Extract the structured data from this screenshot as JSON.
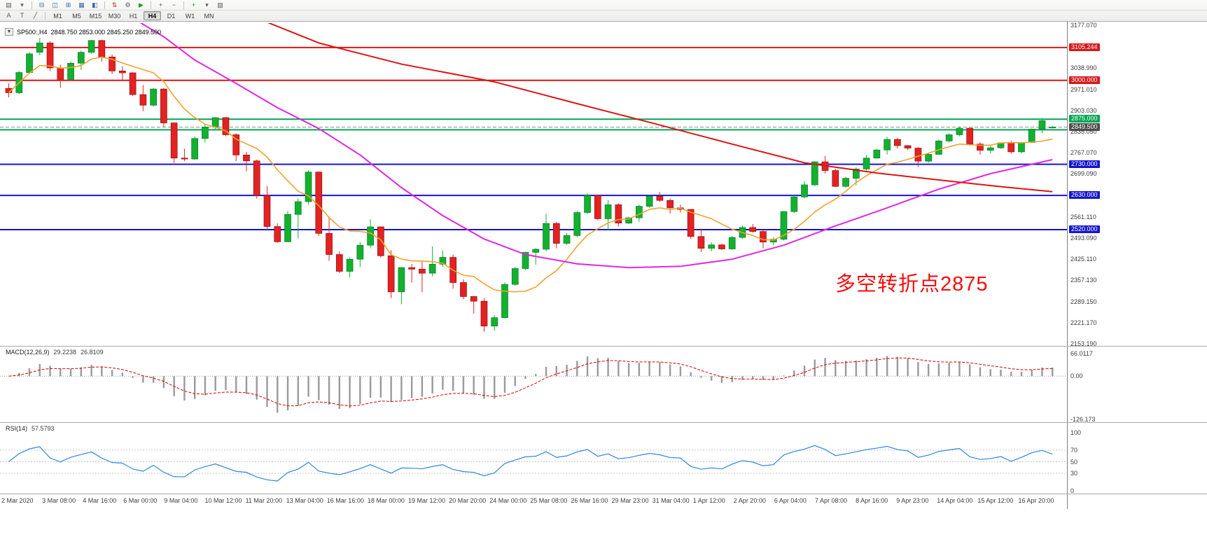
{
  "toolbar": {
    "row1": [
      {
        "name": "new-chart-icon",
        "glyph": "▤",
        "color": "#5a5a5a"
      },
      {
        "name": "profiles-dropdown-icon",
        "glyph": "▾",
        "color": "#5a5a5a"
      },
      {
        "name": "sep"
      },
      {
        "name": "market-watch-icon",
        "glyph": "⊟",
        "color": "#3465a4"
      },
      {
        "name": "data-window-icon",
        "glyph": "◫",
        "color": "#3465a4"
      },
      {
        "name": "navigator-icon",
        "glyph": "⊞",
        "color": "#3465a4"
      },
      {
        "name": "terminal-icon",
        "glyph": "▦",
        "color": "#3465a4"
      },
      {
        "name": "strategy-tester-icon",
        "glyph": "◧",
        "color": "#3465a4"
      },
      {
        "name": "sep"
      },
      {
        "name": "new-order-icon",
        "glyph": "⇅",
        "color": "#c02222"
      },
      {
        "name": "metaeditor-icon",
        "glyph": "⚙",
        "color": "#5a5a5a"
      },
      {
        "name": "autotrading-icon",
        "glyph": "▶",
        "color": "#2a9a2a"
      },
      {
        "name": "sep"
      },
      {
        "name": "zoom-in-icon",
        "glyph": "+",
        "color": "#5a5a5a"
      },
      {
        "name": "zoom-out-icon",
        "glyph": "−",
        "color": "#5a5a5a"
      },
      {
        "name": "sep"
      },
      {
        "name": "indicators-add-icon",
        "glyph": "+",
        "color": "#14a014"
      },
      {
        "name": "timeframes-dropdown-icon",
        "glyph": "▾",
        "color": "#5a5a5a"
      },
      {
        "name": "templates-icon",
        "glyph": "▧",
        "color": "#5a5a5a"
      }
    ],
    "row2_tools": [
      {
        "name": "text-label-tool-button",
        "label": "A"
      },
      {
        "name": "text-tool-button",
        "label": "T"
      },
      {
        "name": "line-studies-tool-button",
        "label": "╱"
      }
    ],
    "timeframes": [
      "M1",
      "M5",
      "M15",
      "M30",
      "H1",
      "H4",
      "D1",
      "W1",
      "MN"
    ],
    "active_timeframe": "H4"
  },
  "chart": {
    "title_symbol": "SP500:,H4",
    "title_ohlc": "2848.750 2853.000 2845.250 2849.500",
    "annotation": "多空转折点2875",
    "range": {
      "max": 3177.07,
      "min": 2153.19
    },
    "axis_ticks": [
      3177.07,
      3038.99,
      2971.01,
      2903.03,
      2835.05,
      2767.07,
      2699.09,
      2561.11,
      2493.09,
      2425.11,
      2357.13,
      2289.15,
      2221.17,
      2153.19
    ],
    "level_labels": [
      {
        "value": 3105.244,
        "style": "red"
      },
      {
        "value": 3000.0,
        "style": "red"
      },
      {
        "value": 2875.0,
        "style": "green"
      },
      {
        "value": 2849.5,
        "style": "dark"
      },
      {
        "value": 2730.0,
        "style": "blue"
      },
      {
        "value": 2630.0,
        "style": "blue"
      },
      {
        "value": 2520.0,
        "style": "blue"
      }
    ]
  },
  "chart_data": {
    "type": "candlestick",
    "symbol": "SP500",
    "timeframe": "H4",
    "title": "SP500:,H4 2848.750 2853.000 2845.250 2849.500",
    "ylim": [
      2153.19,
      3177.07
    ],
    "x_labels": [
      "2 Mar 2020",
      "3 Mar 08:00",
      "4 Mar 16:00",
      "6 Mar 00:00",
      "9 Mar 04:00",
      "10 Mar 12:00",
      "11 Mar 20:00",
      "13 Mar 04:00",
      "16 Mar 16:00",
      "18 Mar 00:00",
      "19 Mar 12:00",
      "20 Mar 20:00",
      "24 Mar 00:00",
      "25 Mar 08:00",
      "26 Mar 16:00",
      "29 Mar 23:00",
      "31 Mar 04:00",
      "1 Apr 12:00",
      "2 Apr 20:00",
      "6 Apr 04:00",
      "7 Apr 08:00",
      "8 Apr 16:00",
      "9 Apr 23:00",
      "14 Apr 04:00",
      "15 Apr 12:00",
      "16 Apr 20:00"
    ],
    "candles": [
      [
        2974,
        2990,
        2945,
        2960
      ],
      [
        2960,
        3030,
        2955,
        3025
      ],
      [
        3025,
        3090,
        3020,
        3085
      ],
      [
        3090,
        3136,
        3080,
        3120
      ],
      [
        3120,
        3125,
        3030,
        3040
      ],
      [
        3040,
        3050,
        2976,
        3003
      ],
      [
        3003,
        3060,
        3000,
        3055
      ],
      [
        3055,
        3095,
        3034,
        3090
      ],
      [
        3090,
        3130,
        3085,
        3128
      ],
      [
        3128,
        3130,
        3060,
        3075
      ],
      [
        3075,
        3083,
        3020,
        3030
      ],
      [
        3030,
        3045,
        2999,
        3024
      ],
      [
        3024,
        3026,
        2950,
        2954
      ],
      [
        2954,
        2985,
        2901,
        2920
      ],
      [
        2920,
        2975,
        2915,
        2972
      ],
      [
        2972,
        2975,
        2850,
        2863
      ],
      [
        2863,
        2865,
        2734,
        2750
      ],
      [
        2750,
        2780,
        2740,
        2747
      ],
      [
        2747,
        2820,
        2745,
        2813
      ],
      [
        2813,
        2860,
        2800,
        2850
      ],
      [
        2850,
        2882,
        2840,
        2880
      ],
      [
        2880,
        2882,
        2820,
        2825
      ],
      [
        2825,
        2830,
        2740,
        2760
      ],
      [
        2760,
        2770,
        2707,
        2741
      ],
      [
        2741,
        2745,
        2620,
        2630
      ],
      [
        2630,
        2660,
        2520,
        2530
      ],
      [
        2530,
        2540,
        2478,
        2481
      ],
      [
        2481,
        2580,
        2480,
        2569
      ],
      [
        2569,
        2620,
        2492,
        2610
      ],
      [
        2610,
        2711,
        2600,
        2705
      ],
      [
        2705,
        2707,
        2500,
        2508
      ],
      [
        2508,
        2562,
        2420,
        2440
      ],
      [
        2440,
        2450,
        2381,
        2386
      ],
      [
        2386,
        2430,
        2367,
        2425
      ],
      [
        2425,
        2480,
        2400,
        2470
      ],
      [
        2470,
        2553,
        2460,
        2529
      ],
      [
        2529,
        2530,
        2430,
        2436
      ],
      [
        2436,
        2454,
        2300,
        2320
      ],
      [
        2320,
        2400,
        2280,
        2398
      ],
      [
        2398,
        2410,
        2350,
        2393
      ],
      [
        2393,
        2420,
        2319,
        2380
      ],
      [
        2380,
        2466,
        2370,
        2409
      ],
      [
        2409,
        2453,
        2400,
        2431
      ],
      [
        2431,
        2440,
        2330,
        2350
      ],
      [
        2350,
        2360,
        2296,
        2305
      ],
      [
        2305,
        2307,
        2250,
        2290
      ],
      [
        2290,
        2300,
        2192,
        2210
      ],
      [
        2210,
        2245,
        2195,
        2237
      ],
      [
        2237,
        2350,
        2235,
        2344
      ],
      [
        2344,
        2400,
        2340,
        2395
      ],
      [
        2395,
        2449,
        2390,
        2447
      ],
      [
        2447,
        2460,
        2407,
        2457
      ],
      [
        2457,
        2571,
        2450,
        2540
      ],
      [
        2540,
        2545,
        2460,
        2476
      ],
      [
        2476,
        2510,
        2470,
        2501
      ],
      [
        2501,
        2580,
        2495,
        2575
      ],
      [
        2575,
        2637,
        2570,
        2630
      ],
      [
        2630,
        2632,
        2550,
        2555
      ],
      [
        2555,
        2615,
        2520,
        2600
      ],
      [
        2600,
        2605,
        2530,
        2541
      ],
      [
        2541,
        2562,
        2538,
        2558
      ],
      [
        2558,
        2600,
        2545,
        2595
      ],
      [
        2595,
        2631,
        2590,
        2627
      ],
      [
        2627,
        2641,
        2610,
        2614
      ],
      [
        2614,
        2620,
        2571,
        2590
      ],
      [
        2590,
        2600,
        2575,
        2585
      ],
      [
        2585,
        2586,
        2490,
        2498
      ],
      [
        2498,
        2523,
        2448,
        2460
      ],
      [
        2460,
        2480,
        2450,
        2471
      ],
      [
        2471,
        2475,
        2455,
        2458
      ],
      [
        2458,
        2500,
        2455,
        2495
      ],
      [
        2495,
        2533,
        2490,
        2527
      ],
      [
        2527,
        2538,
        2510,
        2514
      ],
      [
        2514,
        2520,
        2460,
        2480
      ],
      [
        2480,
        2495,
        2470,
        2489
      ],
      [
        2489,
        2580,
        2485,
        2578
      ],
      [
        2578,
        2630,
        2574,
        2625
      ],
      [
        2625,
        2676,
        2620,
        2664
      ],
      [
        2664,
        2740,
        2660,
        2738
      ],
      [
        2738,
        2757,
        2700,
        2710
      ],
      [
        2710,
        2715,
        2657,
        2659
      ],
      [
        2659,
        2690,
        2655,
        2685
      ],
      [
        2685,
        2720,
        2663,
        2715
      ],
      [
        2715,
        2760,
        2710,
        2750
      ],
      [
        2750,
        2780,
        2748,
        2776
      ],
      [
        2776,
        2818,
        2762,
        2810
      ],
      [
        2810,
        2815,
        2780,
        2790
      ],
      [
        2790,
        2792,
        2775,
        2782
      ],
      [
        2782,
        2785,
        2721,
        2740
      ],
      [
        2740,
        2765,
        2735,
        2762
      ],
      [
        2762,
        2810,
        2760,
        2805
      ],
      [
        2805,
        2830,
        2800,
        2825
      ],
      [
        2825,
        2851,
        2820,
        2846
      ],
      [
        2846,
        2847,
        2790,
        2795
      ],
      [
        2795,
        2801,
        2761,
        2775
      ],
      [
        2775,
        2790,
        2765,
        2783
      ],
      [
        2783,
        2800,
        2780,
        2799
      ],
      [
        2799,
        2806,
        2764,
        2770
      ],
      [
        2770,
        2800,
        2765,
        2800
      ],
      [
        2800,
        2845,
        2798,
        2843
      ],
      [
        2843,
        2879,
        2830,
        2870
      ],
      [
        2848.75,
        2853,
        2845.25,
        2849.5
      ]
    ],
    "horizontal_lines": {
      "red": [
        3105.244,
        3000.0
      ],
      "green": [
        2875.0,
        2841.0
      ],
      "blue": [
        2730.0,
        2630.0,
        2520.0
      ],
      "bid": 2849.5
    },
    "ma_red_points": [
      [
        24,
        3200
      ],
      [
        30,
        3120
      ],
      [
        38,
        3052
      ],
      [
        47,
        2995
      ],
      [
        55,
        2925
      ],
      [
        62,
        2865
      ],
      [
        70,
        2795
      ],
      [
        77,
        2735
      ],
      [
        84,
        2702
      ],
      [
        91,
        2676
      ],
      [
        96,
        2658
      ],
      [
        101,
        2642
      ]
    ],
    "ma_magenta_points": [
      [
        12,
        3200
      ],
      [
        15,
        3140
      ],
      [
        18,
        3065
      ],
      [
        22,
        2990
      ],
      [
        26,
        2912
      ],
      [
        30,
        2845
      ],
      [
        34,
        2760
      ],
      [
        38,
        2655
      ],
      [
        42,
        2565
      ],
      [
        46,
        2490
      ],
      [
        50,
        2440
      ],
      [
        55,
        2410
      ],
      [
        60,
        2398
      ],
      [
        65,
        2402
      ],
      [
        70,
        2425
      ],
      [
        75,
        2470
      ],
      [
        80,
        2532
      ],
      [
        85,
        2590
      ],
      [
        90,
        2650
      ],
      [
        95,
        2700
      ],
      [
        101,
        2745
      ]
    ],
    "ma_orange_period": 8,
    "annotation": {
      "text": "多空转折点2875",
      "color": "#f50d0d",
      "price_near": 2370
    }
  },
  "macd": {
    "label": "MACD(12,26,9)",
    "value_main": "29.2238",
    "value_signal": "26.8109",
    "scale_max": "66.0117",
    "scale_zero": "0.00",
    "scale_min": "-126.173",
    "range": [
      -126.173,
      66.0117
    ],
    "fast": 12,
    "slow": 26,
    "signal": 9
  },
  "rsi": {
    "label": "RSI(14)",
    "value": "57.5793",
    "period": 14,
    "scale_labels": [
      100,
      70,
      50,
      30,
      0
    ],
    "levels": [
      70,
      50,
      30
    ]
  },
  "colors": {
    "up": "#12b12e",
    "down": "#e32222",
    "line_red": "#dc1414",
    "line_green": "#00a651",
    "line_blue": "#1515d0",
    "ma_orange": "#efa32c",
    "ma_magenta": "#e226e2",
    "macd_hist": "#9a9a9a",
    "macd_signal": "#d40000",
    "rsi_line": "#2f86e0"
  }
}
